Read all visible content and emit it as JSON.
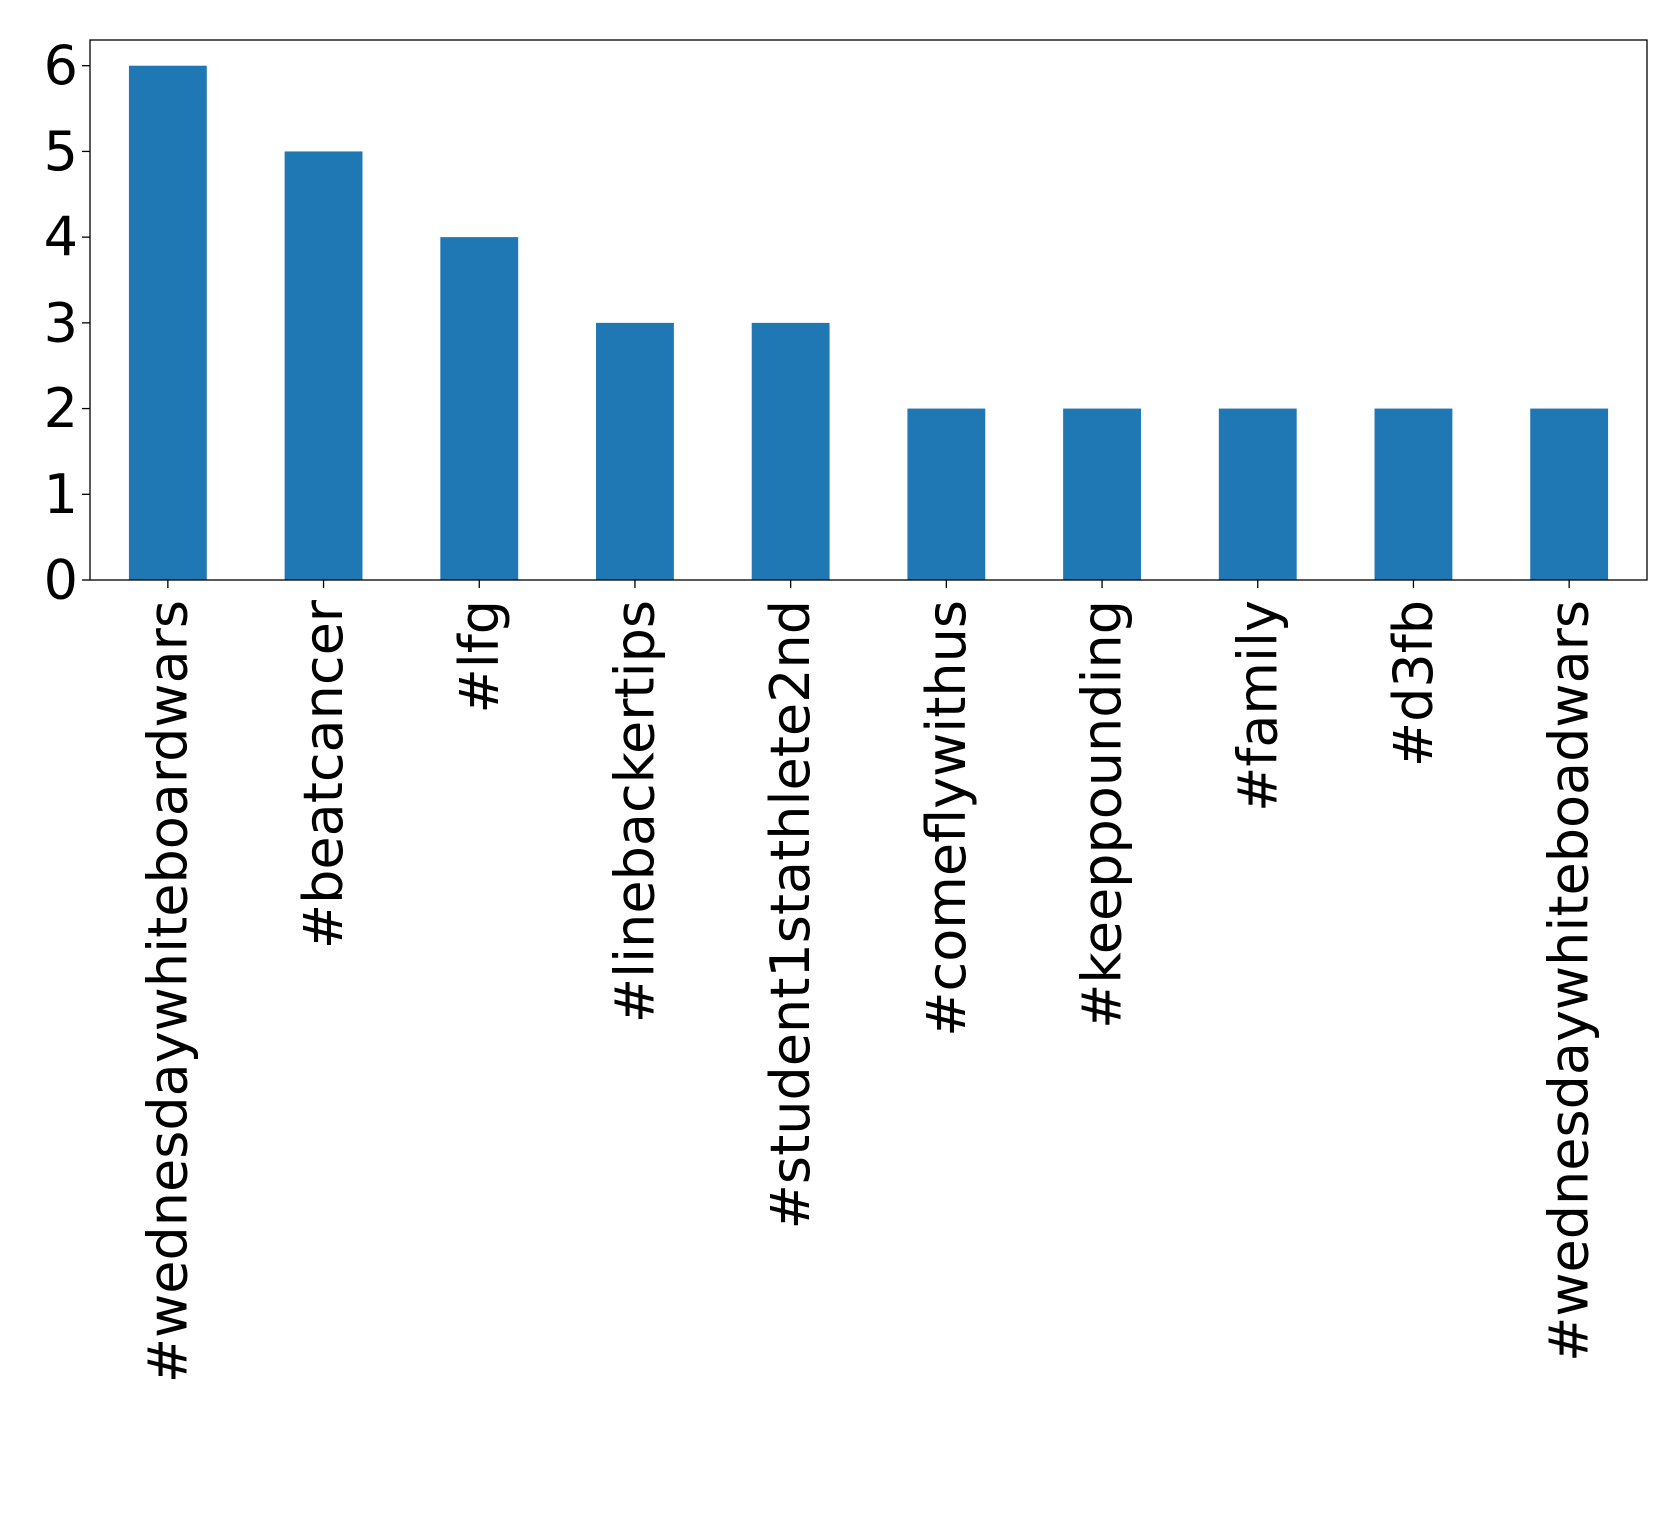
{
  "chart_data": {
    "type": "bar",
    "title": "",
    "xlabel": "",
    "ylabel": "",
    "categories": [
      "#wednesdaywhiteboardwars",
      "#beatcancer",
      "#lfg",
      "#linebackertips",
      "#student1stathlete2nd",
      "#comeflywithus",
      "#keeppounding",
      "#family",
      "#d3fb",
      "#wednesdaywhiteboadwars"
    ],
    "values": [
      6,
      5,
      4,
      3,
      3,
      2,
      2,
      2,
      2,
      2
    ],
    "ylim": [
      0,
      6.3
    ],
    "yticks": [
      "0",
      "1",
      "2",
      "3",
      "4",
      "5",
      "6"
    ],
    "bar_color": "#1f77b4",
    "grid": false,
    "legend": "none"
  }
}
